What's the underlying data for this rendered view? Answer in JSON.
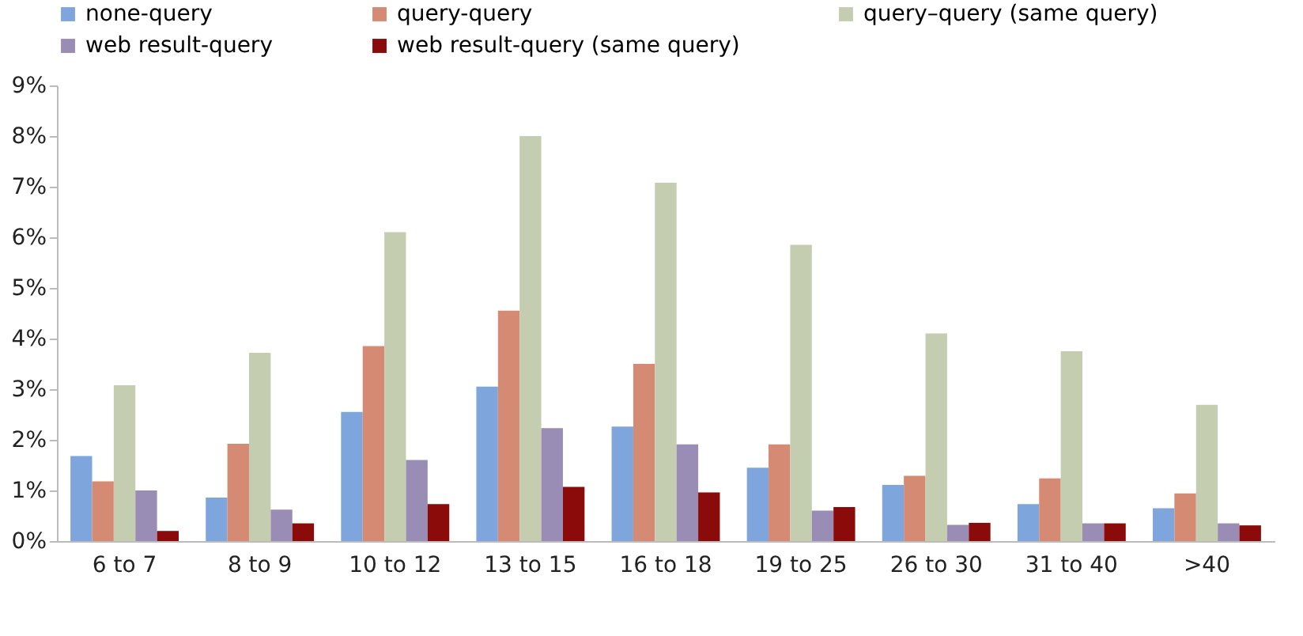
{
  "chart_data": {
    "type": "bar",
    "categories": [
      "6 to 7",
      "8 to 9",
      "10 to 12",
      "13 to 15",
      "16 to 18",
      "19 to 25",
      "26 to 30",
      "31 to 40",
      ">40"
    ],
    "series": [
      {
        "name": "none-query",
        "color": "#7ea6dc",
        "values": [
          1.68,
          0.86,
          2.55,
          3.05,
          2.26,
          1.45,
          1.11,
          0.73,
          0.65
        ]
      },
      {
        "name": "query-query",
        "color": "#d58a74",
        "values": [
          1.18,
          1.92,
          3.85,
          4.55,
          3.5,
          1.91,
          1.29,
          1.24,
          0.94
        ]
      },
      {
        "name": "query–query (same query)",
        "color": "#c5cdb0",
        "values": [
          3.08,
          3.72,
          6.1,
          8.0,
          7.08,
          5.85,
          4.1,
          3.75,
          2.69
        ]
      },
      {
        "name": "web result-query",
        "color": "#9a8db5",
        "values": [
          1.0,
          0.62,
          1.6,
          2.23,
          1.91,
          0.6,
          0.32,
          0.35,
          0.35
        ]
      },
      {
        "name": "web result-query (same query)",
        "color": "#8b0a0a",
        "values": [
          0.2,
          0.35,
          0.73,
          1.07,
          0.96,
          0.67,
          0.36,
          0.35,
          0.31
        ]
      }
    ],
    "ylim": [
      0,
      9
    ],
    "yticks": [
      {
        "value": 0,
        "label": "0%"
      },
      {
        "value": 1,
        "label": "1%"
      },
      {
        "value": 2,
        "label": "2%"
      },
      {
        "value": 3,
        "label": "3%"
      },
      {
        "value": 4,
        "label": "4%"
      },
      {
        "value": 5,
        "label": "5%"
      },
      {
        "value": 6,
        "label": "6%"
      },
      {
        "value": 7,
        "label": "7%"
      },
      {
        "value": 8,
        "label": "8%"
      },
      {
        "value": 9,
        "label": "9%"
      }
    ],
    "grid": false,
    "legend": "top"
  }
}
